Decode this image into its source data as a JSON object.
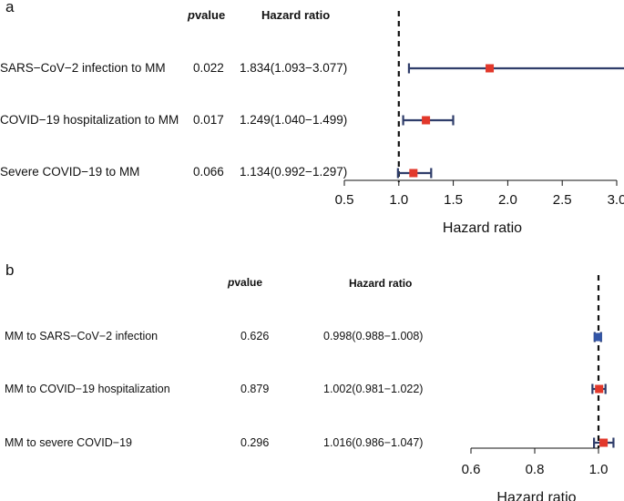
{
  "chart_data": [
    {
      "panel": "a",
      "type": "forest",
      "columns": {
        "p_prefix": "p",
        "p_suffix": "value",
        "hr": "Hazard ratio"
      },
      "rows": [
        {
          "label": "SARS−CoV−2 infection to MM",
          "p": "0.022",
          "hr_text": "1.834(1.093−3.077)",
          "hr": 1.834,
          "lo": 1.093,
          "hi": 3.077,
          "color": "#e2382b"
        },
        {
          "label": "COVID−19 hospitalization to MM",
          "p": "0.017",
          "hr_text": "1.249(1.040−1.499)",
          "hr": 1.249,
          "lo": 1.04,
          "hi": 1.499,
          "color": "#e2382b"
        },
        {
          "label": "Severe COVID−19  to MM",
          "p": "0.066",
          "hr_text": "1.134(0.992−1.297)",
          "hr": 1.134,
          "lo": 0.992,
          "hi": 1.297,
          "color": "#e2382b"
        }
      ],
      "xlim": [
        0.5,
        3.0
      ],
      "ticks": [
        "0.5",
        "1.0",
        "1.5",
        "2.0",
        "2.5",
        "3.0"
      ],
      "reference": 1.0,
      "xlabel": "Hazard ratio",
      "ci_color": "#2f3d6a"
    },
    {
      "panel": "b",
      "type": "forest",
      "columns": {
        "p_prefix": "p",
        "p_suffix": "value",
        "hr": "Hazard ratio"
      },
      "rows": [
        {
          "label": "MM  to SARS−CoV−2 infection",
          "p": "0.626",
          "hr_text": "0.998(0.988−1.008)",
          "hr": 0.998,
          "lo": 0.988,
          "hi": 1.008,
          "color": "#3355a6"
        },
        {
          "label": "MM  to COVID−19 hospitalization",
          "p": "0.879",
          "hr_text": "1.002(0.981−1.022)",
          "hr": 1.002,
          "lo": 0.981,
          "hi": 1.022,
          "color": "#e2382b"
        },
        {
          "label": "MM  to severe COVID−19",
          "p": "0.296",
          "hr_text": "1.016(0.986−1.047)",
          "hr": 1.016,
          "lo": 0.986,
          "hi": 1.047,
          "color": "#e2382b"
        }
      ],
      "xlim": [
        0.6,
        1.0
      ],
      "ticks": [
        "0.6",
        "0.8",
        "1.0"
      ],
      "reference": 1.0,
      "xlabel": "Hazard ratio",
      "ci_color": "#2f3d6a"
    }
  ]
}
